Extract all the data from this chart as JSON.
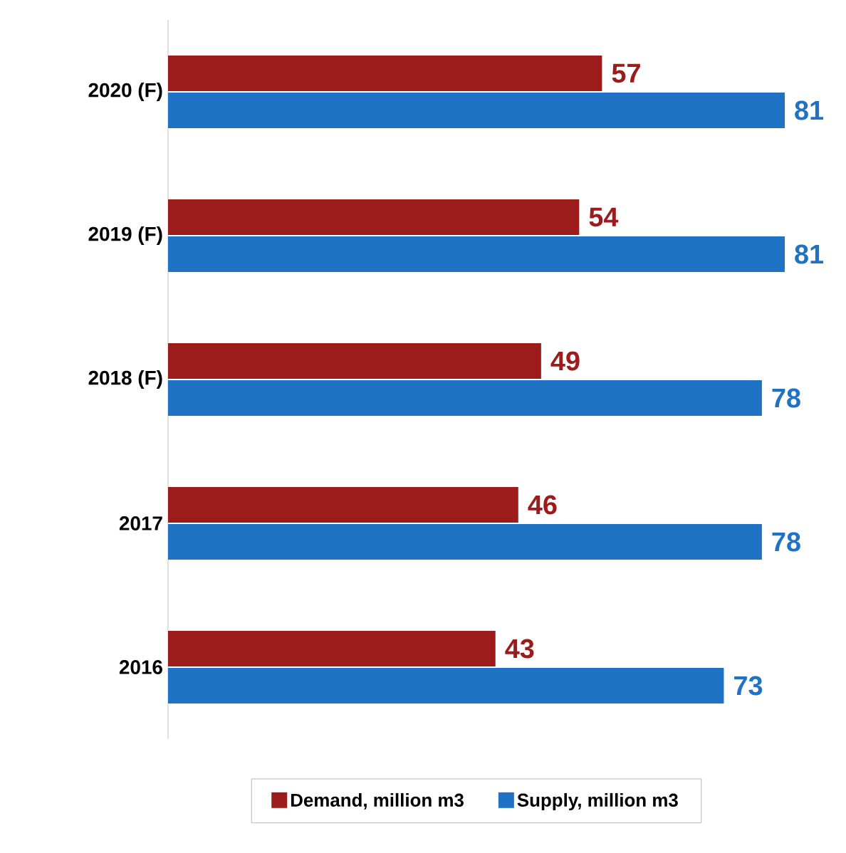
{
  "chart_data": {
    "type": "bar",
    "orientation": "horizontal",
    "categories": [
      "2020 (F)",
      "2019 (F)",
      "2018 (F)",
      "2017",
      "2016"
    ],
    "series": [
      {
        "name": "Demand, million m3",
        "color": "#9c1b1b",
        "values": [
          57,
          54,
          49,
          46,
          43
        ]
      },
      {
        "name": "Supply, million m3",
        "color": "#1f72c4",
        "values": [
          81,
          81,
          78,
          78,
          73
        ]
      }
    ],
    "data_labels": true,
    "legend": "bottom",
    "grid": false
  }
}
